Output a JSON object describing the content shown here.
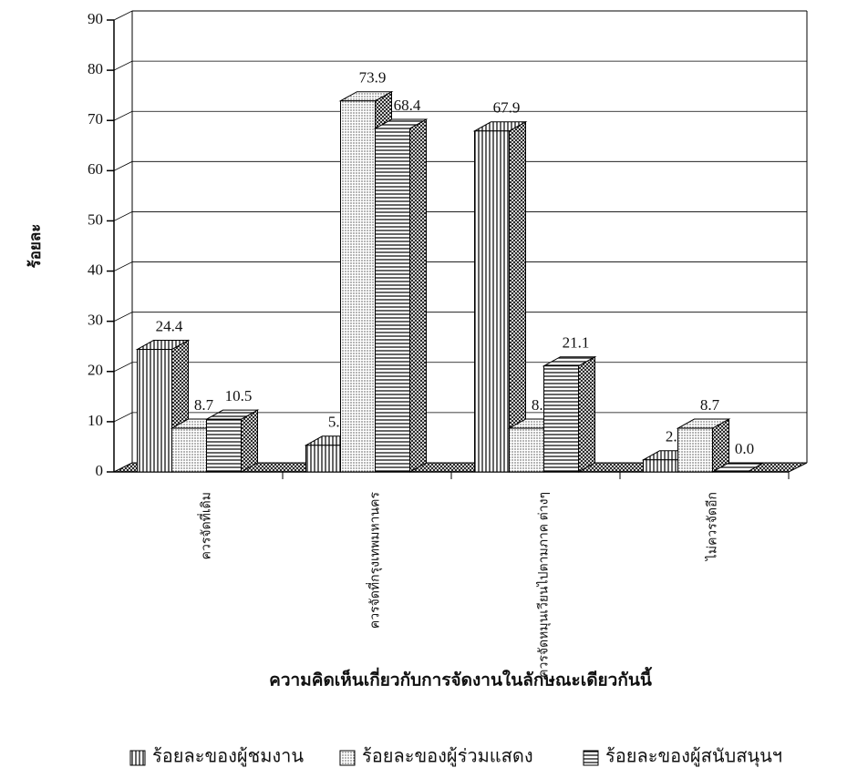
{
  "chart_data": {
    "type": "bar3d",
    "y_label": "ร้อยละ",
    "x_label": "ความคิดเห็นเกี่ยวกับการจัดงานในลักษณะเดียวกันนี้",
    "categories": [
      "ควรจัดที่เดิม",
      "ควรจัดที่กรุงเทพมหานคร",
      "ควรจัดหมุนเวียนไปตามภาค ต่างๆ",
      "ไม่ควรจัดอีก"
    ],
    "series": [
      {
        "name": "ร้อยละของผู้ชมงาน",
        "color": "#000000",
        "pattern": "vertical",
        "values": [
          24.4,
          5.3,
          67.9,
          2.4
        ],
        "value_labels": [
          "24.4",
          "5.3",
          "67.9",
          "2.4"
        ]
      },
      {
        "name": "ร้อยละของผู้ร่วมแสดง",
        "color": "#000000",
        "pattern": "dots",
        "values": [
          8.7,
          73.9,
          8.7,
          8.7
        ],
        "value_labels": [
          "8.7",
          "73.9",
          "8.7",
          "8.7"
        ]
      },
      {
        "name": "ร้อยละของผู้สนับสนุนฯ",
        "color": "#000000",
        "pattern": "horizontal",
        "values": [
          10.5,
          68.4,
          21.1,
          0
        ],
        "value_labels": [
          "10.5",
          "68.4",
          "21.1",
          "0.0"
        ]
      }
    ],
    "ylim": [
      0,
      90
    ],
    "yticks": [
      0,
      10,
      20,
      30,
      40,
      50,
      60,
      70,
      80,
      90
    ],
    "grid": true
  }
}
